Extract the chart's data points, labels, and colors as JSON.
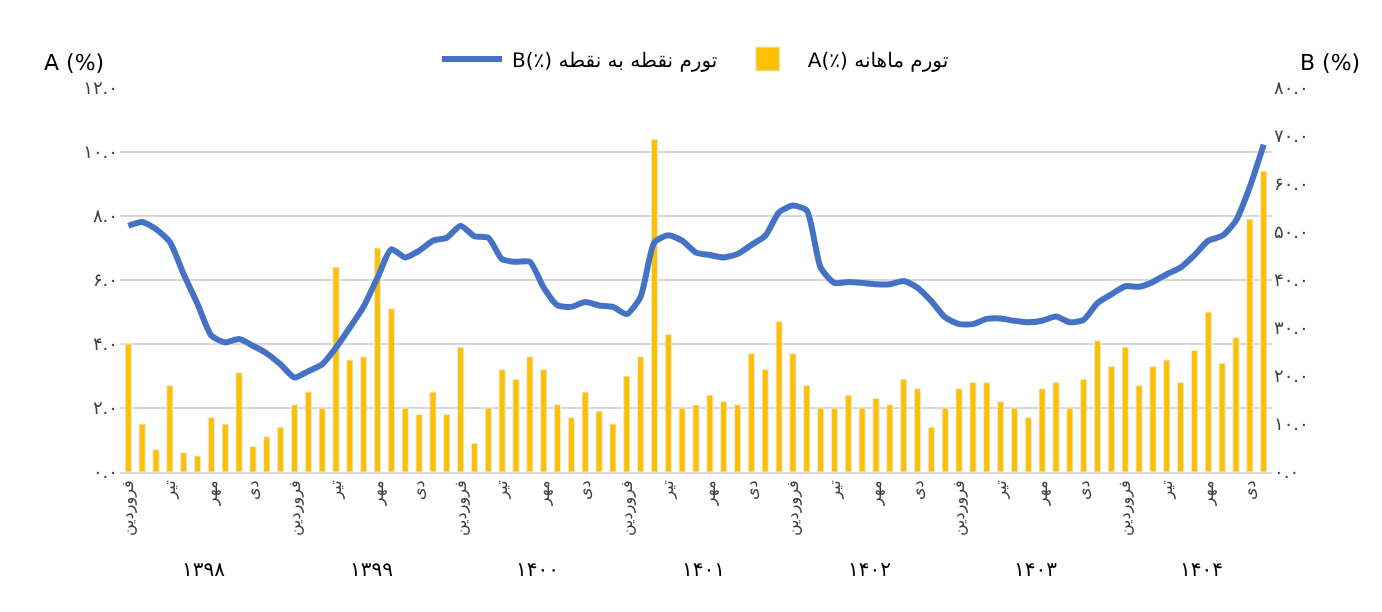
{
  "chart_data": {
    "type": "bar",
    "ylabel": "A (%)",
    "y2label": "B (%)",
    "categories": [
      "فروردین",
      null,
      null,
      "تیر",
      null,
      null,
      "مهر",
      null,
      null,
      "دی",
      null,
      null,
      "فروردین",
      null,
      null,
      "تیر",
      null,
      null,
      "مهر",
      null,
      null,
      "دی",
      null,
      null,
      "فروردین",
      null,
      null,
      "تیر",
      null,
      null,
      "مهر",
      null,
      null,
      "دی",
      null,
      null,
      "فروردین",
      null,
      null,
      "تیر",
      null,
      null,
      "مهر",
      null,
      null,
      "دی",
      null,
      null,
      "فروردین",
      null,
      null,
      "تیر",
      null,
      null,
      "مهر",
      null,
      null,
      "دی",
      null,
      null,
      "فروردین",
      null,
      null,
      "تیر",
      null,
      null,
      "مهر",
      null,
      null,
      "دی",
      null,
      null,
      "فروردین",
      null,
      null,
      "تیر",
      null,
      null,
      "مهر",
      null,
      null,
      "دی",
      null
    ],
    "series": [
      {
        "name": "A(٪) تورم ماهانه",
        "color": "#ffc000",
        "values": [
          4.0,
          1.5,
          0.7,
          2.7,
          0.6,
          0.5,
          1.7,
          1.5,
          3.1,
          0.8,
          1.1,
          1.4,
          2.1,
          2.5,
          2.0,
          6.4,
          3.5,
          3.6,
          7.0,
          5.1,
          2.0,
          1.8,
          2.5,
          1.8,
          3.9,
          0.9,
          2.0,
          3.2,
          2.9,
          3.6,
          3.2,
          2.1,
          1.7,
          2.5,
          1.9,
          1.5,
          3.0,
          3.6,
          10.4,
          4.3,
          2.0,
          2.1,
          2.4,
          2.2,
          2.1,
          3.7,
          3.2,
          4.7,
          3.7,
          2.7,
          2.0,
          2.0,
          2.4,
          2.0,
          2.3,
          2.1,
          2.9,
          2.6,
          1.4,
          2.0,
          2.6,
          2.8,
          2.8,
          2.2,
          2.0,
          1.7,
          2.6,
          2.8,
          2.0,
          2.9,
          4.1,
          3.3,
          3.9,
          2.7,
          3.3,
          3.5,
          2.8,
          3.8,
          5.0,
          3.4,
          4.2,
          7.9,
          9.4
        ]
      },
      {
        "name": "B(٪) تورم نقطه به نقطه",
        "type": "line",
        "axis": "y2",
        "color": "#4472c4",
        "values": [
          51.3,
          52.1,
          50.6,
          47.9,
          41.2,
          35.0,
          28.4,
          27.0,
          27.7,
          26.3,
          24.7,
          22.4,
          19.7,
          21.0,
          22.4,
          25.9,
          30.1,
          34.5,
          40.5,
          46.4,
          44.7,
          46.1,
          48.2,
          48.8,
          51.3,
          49.1,
          48.8,
          44.3,
          43.8,
          43.8,
          38.4,
          34.7,
          34.4,
          35.4,
          34.7,
          34.4,
          32.9,
          36.5,
          47.9,
          49.3,
          48.2,
          45.7,
          45.2,
          44.7,
          45.4,
          47.3,
          49.2,
          54.1,
          55.5,
          54.5,
          42.6,
          39.4,
          39.6,
          39.4,
          39.1,
          39.1,
          39.8,
          38.4,
          35.6,
          32.2,
          30.8,
          30.8,
          31.9,
          32.0,
          31.5,
          31.2,
          31.5,
          32.4,
          31.2,
          31.7,
          35.2,
          37.0,
          38.7,
          38.6,
          39.6,
          41.2,
          42.6,
          45.2,
          48.2,
          49.2,
          52.4,
          59.4,
          68.2
        ]
      }
    ],
    "ylim": [
      0,
      12
    ],
    "yticks": [
      {
        "value": 0,
        "label": "۰.۰"
      },
      {
        "value": 2,
        "label": "۲.۰"
      },
      {
        "value": 4,
        "label": "۴.۰"
      },
      {
        "value": 6,
        "label": "۶.۰"
      },
      {
        "value": 8,
        "label": "۸.۰"
      },
      {
        "value": 10,
        "label": "۱۰.۰"
      },
      {
        "value": 12,
        "label": "۱۲.۰"
      }
    ],
    "y2lim": [
      0,
      80
    ],
    "y2ticks": [
      {
        "value": 0,
        "label": "۰.۰"
      },
      {
        "value": 10,
        "label": "۱۰.۰"
      },
      {
        "value": 20,
        "label": "۲۰.۰"
      },
      {
        "value": 30,
        "label": "۳۰.۰"
      },
      {
        "value": 40,
        "label": "۴۰.۰"
      },
      {
        "value": 50,
        "label": "۵۰.۰"
      },
      {
        "value": 60,
        "label": "۶۰.۰"
      },
      {
        "value": 70,
        "label": "۷۰.۰"
      },
      {
        "value": 80,
        "label": "۸۰.۰"
      }
    ],
    "annotations": [
      "۱۳۹۸",
      "۱۳۹۹",
      "۱۴۰۰",
      "۱۴۰۱",
      "۱۴۰۲",
      "۱۴۰۳",
      "۱۴۰۴"
    ],
    "grid": "y",
    "legend": "top"
  }
}
